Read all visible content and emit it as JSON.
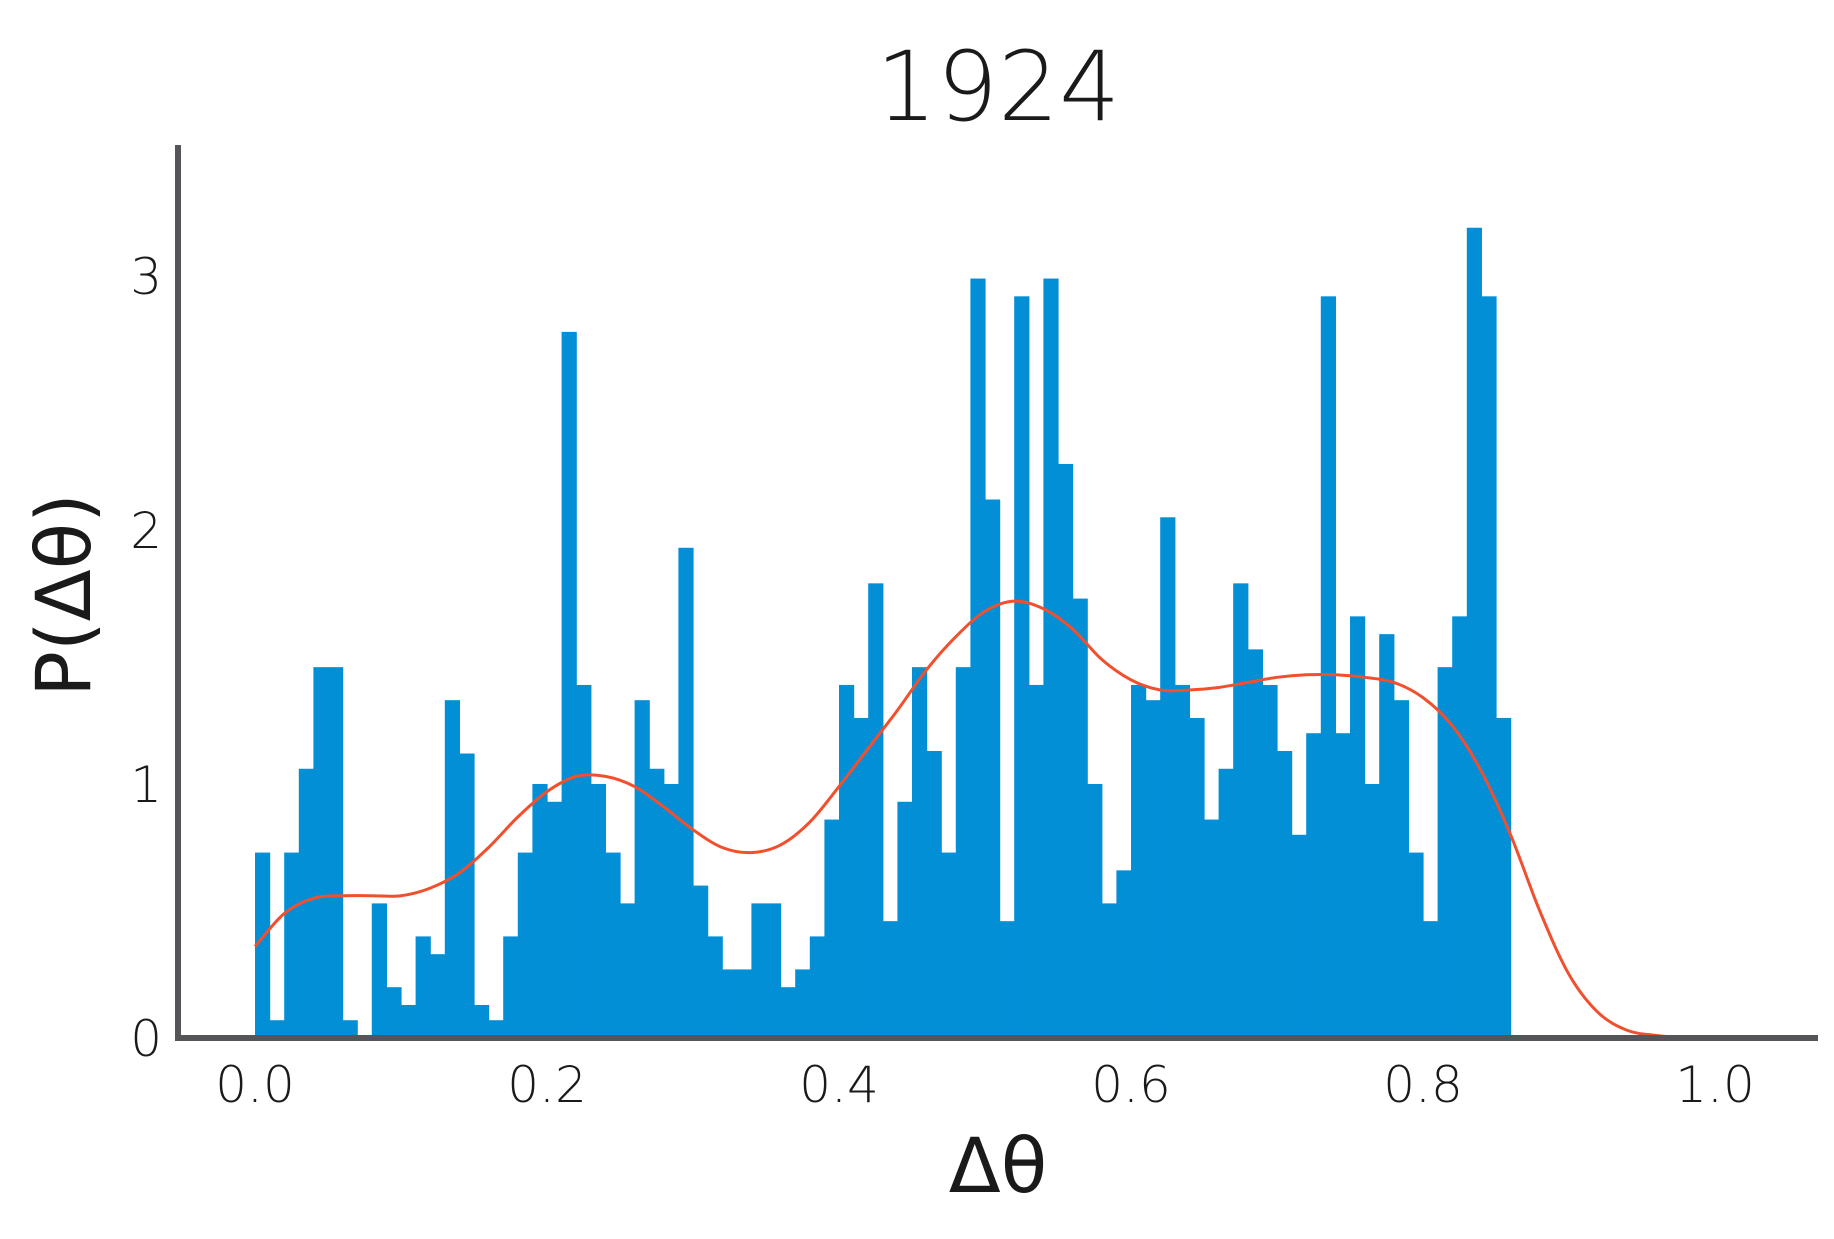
{
  "chart_data": {
    "type": "bar",
    "title": "1924",
    "xlabel": "Δθ",
    "ylabel": "P(Δθ)",
    "xlim": [
      -0.05,
      1.05
    ],
    "ylim": [
      0,
      3.5
    ],
    "xticks": [
      0.0,
      0.2,
      0.4,
      0.6,
      0.8,
      1.0
    ],
    "xtick_labels": [
      "0.0",
      "0.2",
      "0.4",
      "0.6",
      "0.8",
      "1.0"
    ],
    "yticks": [
      0,
      1,
      2,
      3
    ],
    "ytick_labels": [
      "0",
      "1",
      "2",
      "3"
    ],
    "bin_width": 0.01,
    "bin_edges_start": 0.0,
    "histogram_color": "#038fd6",
    "kde_color": "#f1502f",
    "axis_color": "#555559",
    "grid": false,
    "legend": false,
    "histogram_values": [
      0.73,
      0.07,
      0.73,
      1.06,
      1.46,
      1.46,
      0.07,
      0.0,
      0.53,
      0.2,
      0.13,
      0.4,
      0.33,
      1.33,
      1.12,
      0.13,
      0.07,
      0.4,
      0.73,
      1.0,
      0.93,
      2.78,
      1.39,
      1.0,
      0.73,
      0.53,
      1.33,
      1.06,
      1.0,
      1.93,
      0.6,
      0.4,
      0.27,
      0.27,
      0.53,
      0.53,
      0.2,
      0.27,
      0.4,
      0.86,
      1.39,
      1.26,
      1.79,
      0.46,
      0.93,
      1.46,
      1.13,
      0.73,
      1.46,
      2.99,
      2.12,
      0.46,
      2.92,
      1.39,
      2.99,
      2.26,
      1.73,
      1.0,
      0.53,
      0.66,
      1.39,
      1.33,
      2.05,
      1.39,
      1.26,
      0.86,
      1.06,
      1.79,
      1.53,
      1.39,
      1.13,
      0.8,
      1.2,
      2.92,
      1.2,
      1.66,
      1.0,
      1.59,
      1.33,
      0.73,
      0.46,
      1.46,
      1.66,
      3.19,
      2.92,
      1.26
    ],
    "kde_x": [
      0.0,
      0.02,
      0.04,
      0.06,
      0.08,
      0.1,
      0.12,
      0.14,
      0.16,
      0.18,
      0.2,
      0.22,
      0.24,
      0.26,
      0.28,
      0.3,
      0.32,
      0.34,
      0.36,
      0.38,
      0.4,
      0.42,
      0.44,
      0.46,
      0.48,
      0.5,
      0.52,
      0.54,
      0.56,
      0.58,
      0.6,
      0.62,
      0.64,
      0.66,
      0.68,
      0.7,
      0.72,
      0.74,
      0.76,
      0.78,
      0.8,
      0.82,
      0.84,
      0.86,
      0.88,
      0.9,
      0.92,
      0.94,
      0.96,
      0.98
    ],
    "kde_y": [
      0.36,
      0.49,
      0.55,
      0.56,
      0.56,
      0.56,
      0.59,
      0.65,
      0.75,
      0.87,
      0.97,
      1.03,
      1.03,
      0.99,
      0.91,
      0.82,
      0.75,
      0.73,
      0.76,
      0.85,
      0.99,
      1.14,
      1.29,
      1.45,
      1.58,
      1.68,
      1.72,
      1.69,
      1.61,
      1.49,
      1.41,
      1.37,
      1.37,
      1.38,
      1.4,
      1.42,
      1.43,
      1.43,
      1.42,
      1.4,
      1.34,
      1.23,
      1.05,
      0.8,
      0.5,
      0.25,
      0.1,
      0.03,
      0.01,
      0.0
    ]
  }
}
